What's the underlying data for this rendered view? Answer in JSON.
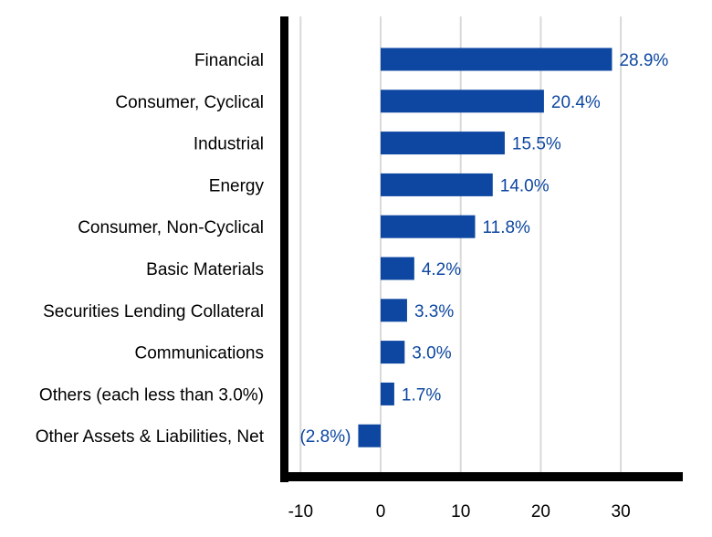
{
  "chart_data": {
    "type": "bar",
    "orientation": "horizontal",
    "categories": [
      "Financial",
      "Consumer, Cyclical",
      "Industrial",
      "Energy",
      "Consumer, Non-Cyclical",
      "Basic Materials",
      "Securities Lending Collateral",
      "Communications",
      "Others (each less than 3.0%)",
      "Other Assets & Liabilities, Net"
    ],
    "values": [
      28.9,
      20.4,
      15.5,
      14.0,
      11.8,
      4.2,
      3.3,
      3.0,
      1.7,
      -2.8
    ],
    "value_labels": [
      "28.9%",
      "20.4%",
      "15.5%",
      "14.0%",
      "11.8%",
      "4.2%",
      "3.3%",
      "3.0%",
      "1.7%",
      "(2.8%)"
    ],
    "xticks": [
      -10,
      0,
      10,
      20,
      30
    ],
    "xtick_labels": [
      "-10",
      "0",
      "10",
      "20",
      "30"
    ],
    "xlim": [
      -12.5,
      38
    ],
    "grid": "vertical",
    "colors": {
      "bar": "#0d47a1",
      "value_label": "#0d47a1",
      "axis": "#000000",
      "grid": "#d9d9d9"
    }
  }
}
